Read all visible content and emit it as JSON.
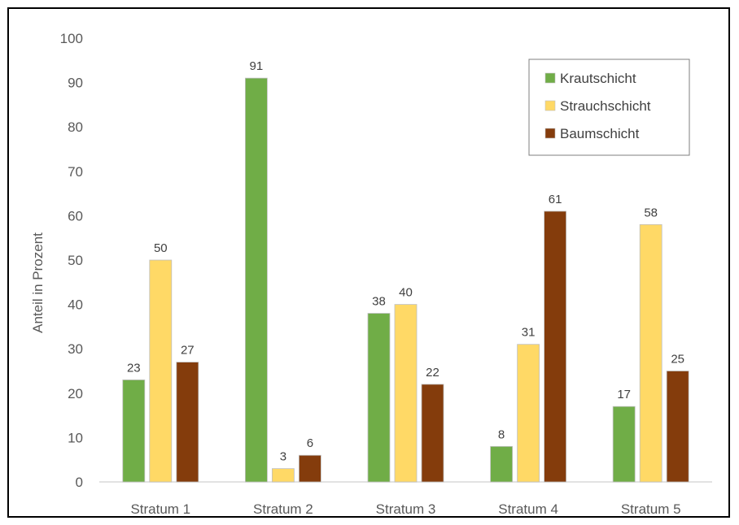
{
  "chart_data": {
    "type": "bar",
    "title": "",
    "xlabel": "",
    "ylabel": "Anteil in Prozent",
    "ylim": [
      0,
      100
    ],
    "ytick_step": 10,
    "grid": false,
    "legend_position": "top-right",
    "categories": [
      "Stratum 1",
      "Stratum 2",
      "Stratum 3",
      "Stratum 4",
      "Stratum 5"
    ],
    "series": [
      {
        "name": "Krautschicht",
        "color": "#70ad47",
        "values": [
          23,
          91,
          38,
          8,
          17
        ]
      },
      {
        "name": "Strauchschicht",
        "color": "#ffd966",
        "values": [
          50,
          3,
          40,
          31,
          58
        ]
      },
      {
        "name": "Baumschicht",
        "color": "#843c0c",
        "values": [
          27,
          6,
          22,
          61,
          25
        ]
      }
    ],
    "data_labels": true
  }
}
